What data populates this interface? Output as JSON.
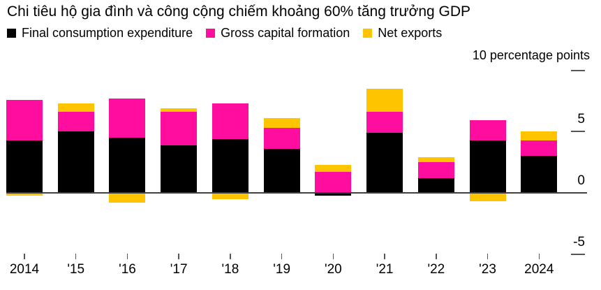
{
  "title": "Chi tiêu hộ gia đình và công cộng chiếm khoảng 60% tăng trưởng GDP",
  "axis": {
    "unit_label": "10 percentage points",
    "y_ticks": [
      {
        "value": 10,
        "label": "",
        "dash": true
      },
      {
        "value": 5,
        "label": "5",
        "dash": true
      },
      {
        "value": 0,
        "label": "0",
        "dash": false
      },
      {
        "value": -5,
        "label": "-5",
        "dash": true
      }
    ]
  },
  "chart_data": {
    "type": "bar",
    "stacked": true,
    "title": "Chi tiêu hộ gia đình và công cộng chiếm khoảng 60% tăng trưởng GDP",
    "ylabel": "10 percentage points",
    "unit": "percentage points",
    "ylim": [
      -6.6,
      10.8
    ],
    "y_tick_values": [
      10,
      5,
      0,
      -5
    ],
    "grid": false,
    "legend_position": "top",
    "categories": [
      "2014",
      "'15",
      "'16",
      "'17",
      "'18",
      "'19",
      "'20",
      "'21",
      "'22",
      "'23",
      "2024"
    ],
    "series": [
      {
        "name": "Final consumption expenditure",
        "color": "#000000",
        "values": [
          4.3,
          5.0,
          4.5,
          3.9,
          4.4,
          3.6,
          -0.2,
          4.9,
          1.2,
          4.3,
          3.0
        ]
      },
      {
        "name": "Gross capital formation",
        "color": "#ff0d9e",
        "values": [
          3.3,
          1.6,
          3.2,
          2.7,
          2.9,
          1.7,
          1.7,
          1.7,
          1.3,
          1.6,
          1.3
        ]
      },
      {
        "name": "Net exports",
        "color": "#ffc400",
        "values": [
          -0.2,
          0.7,
          -0.8,
          0.3,
          -0.5,
          0.8,
          0.6,
          1.9,
          0.4,
          -0.7,
          0.7
        ]
      }
    ]
  }
}
